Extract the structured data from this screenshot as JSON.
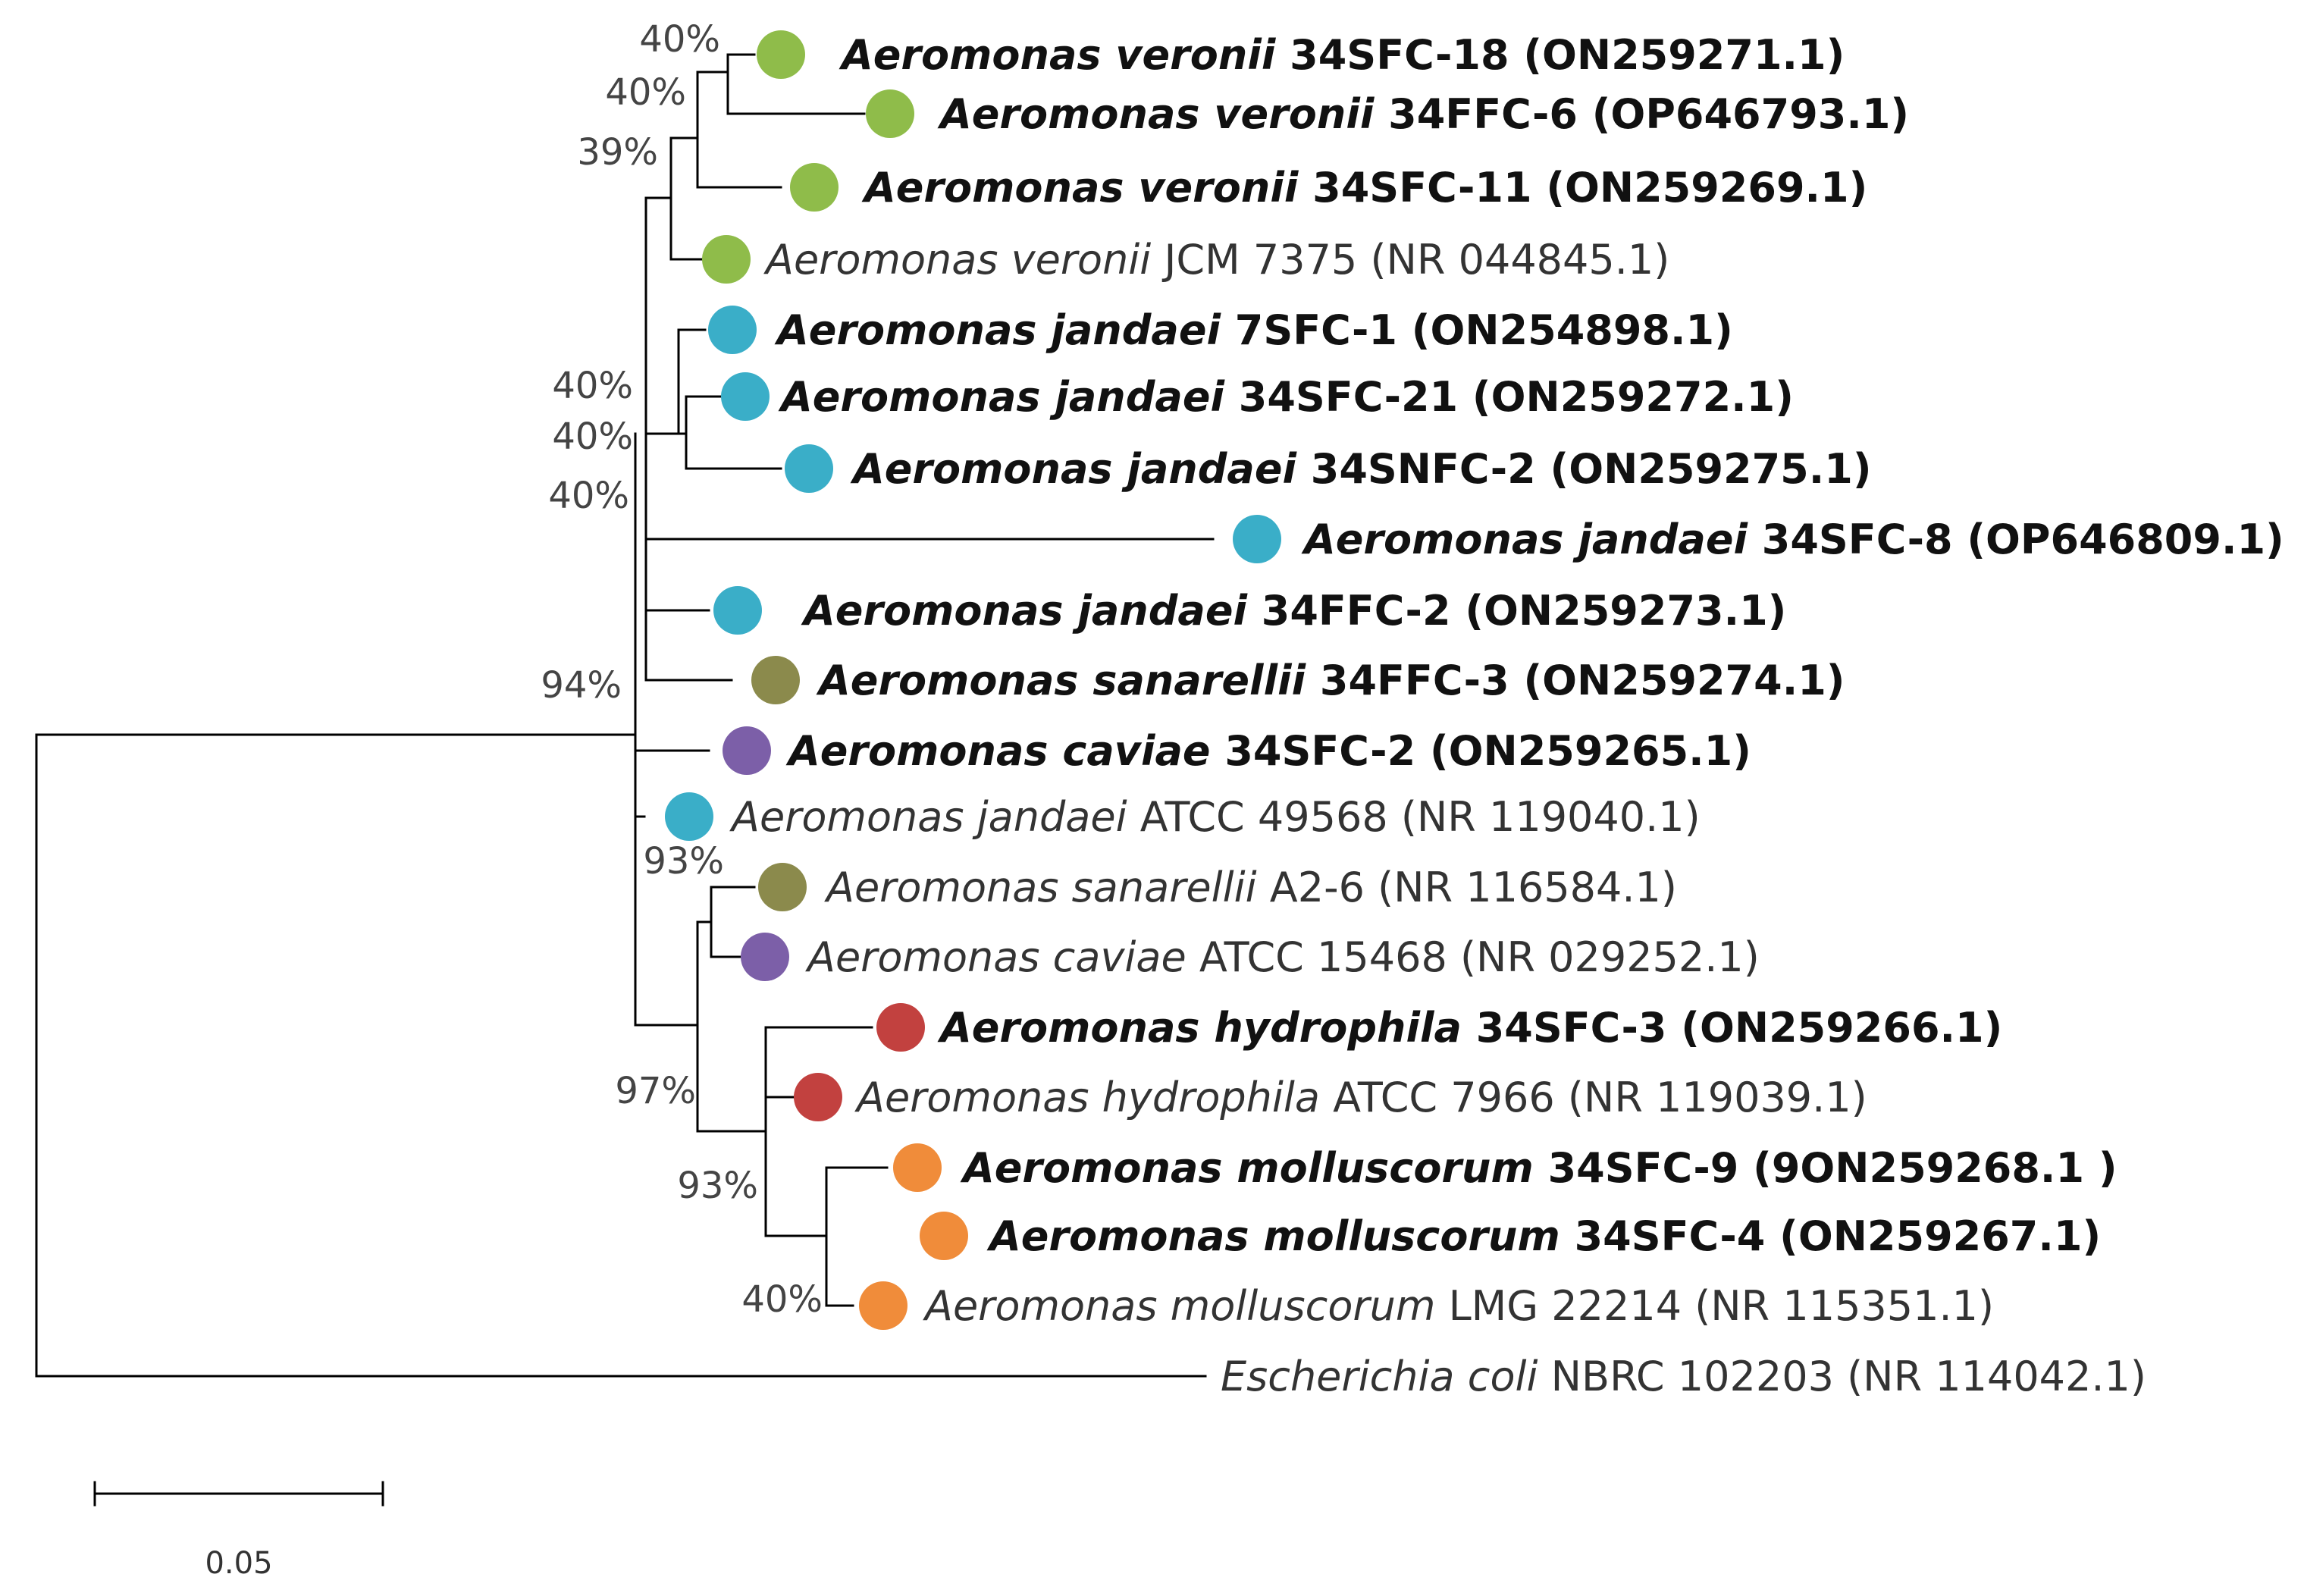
{
  "figure": {
    "scale_bar_label": "0.05"
  },
  "colors": {
    "veronii": "#8fbc4a",
    "jandaei": "#3aaec8",
    "sanarellii": "#8b8a4c",
    "caviae": "#7c5fa8",
    "hydrophila": "#c2413f",
    "molluscorum": "#f08c3a",
    "branch": "#000000"
  },
  "taxa": [
    {
      "genus": "Aeromonas veronii",
      "rest": " 34SFC-18 (ON259271.1)",
      "group": "veronii",
      "highlight": true
    },
    {
      "genus": "Aeromonas veronii",
      "rest": " 34FFC-6 (OP646793.1)",
      "group": "veronii",
      "highlight": true
    },
    {
      "genus": "Aeromonas veronii",
      "rest": " 34SFC-11 (ON259269.1)",
      "group": "veronii",
      "highlight": true
    },
    {
      "genus": "Aeromonas veronii",
      "rest": " JCM 7375 (NR 044845.1)",
      "group": "veronii",
      "highlight": false
    },
    {
      "genus": "Aeromonas jandaei",
      "rest": " 7SFC-1 (ON254898.1)",
      "group": "jandaei",
      "highlight": true
    },
    {
      "genus": "Aeromonas jandaei",
      "rest": " 34SFC-21 (ON259272.1)",
      "group": "jandaei",
      "highlight": true
    },
    {
      "genus": "Aeromonas jandaei",
      "rest": " 34SNFC-2 (ON259275.1)",
      "group": "jandaei",
      "highlight": true
    },
    {
      "genus": "Aeromonas jandaei",
      "rest": " 34SFC-8 (OP646809.1)",
      "group": "jandaei",
      "highlight": true
    },
    {
      "genus": "Aeromonas jandaei",
      "rest": " 34FFC-2 (ON259273.1)",
      "group": "jandaei",
      "highlight": true
    },
    {
      "genus": "Aeromonas sanarellii",
      "rest": " 34FFC-3 (ON259274.1)",
      "group": "sanarellii",
      "highlight": true
    },
    {
      "genus": "Aeromonas caviae",
      "rest": " 34SFC-2 (ON259265.1)",
      "group": "caviae",
      "highlight": true
    },
    {
      "genus": "Aeromonas jandaei",
      "rest": " ATCC 49568 (NR 119040.1)",
      "group": "jandaei",
      "highlight": false
    },
    {
      "genus": "Aeromonas sanarellii",
      "rest": " A2-6 (NR 116584.1)",
      "group": "sanarellii",
      "highlight": false
    },
    {
      "genus": "Aeromonas caviae",
      "rest": " ATCC 15468 (NR 029252.1)",
      "group": "caviae",
      "highlight": false
    },
    {
      "genus": "Aeromonas hydrophila",
      "rest": " 34SFC-3 (ON259266.1)",
      "group": "hydrophila",
      "highlight": true
    },
    {
      "genus": "Aeromonas hydrophila",
      "rest": " ATCC 7966 (NR 119039.1)",
      "group": "hydrophila",
      "highlight": false
    },
    {
      "genus": "Aeromonas molluscorum",
      "rest": " 34SFC-9 (9ON259268.1 )",
      "group": "molluscorum",
      "highlight": true
    },
    {
      "genus": "Aeromonas molluscorum",
      "rest": " 34SFC-4 (ON259267.1)",
      "group": "molluscorum",
      "highlight": true
    },
    {
      "genus": "Aeromonas molluscorum",
      "rest": " LMG 22214 (NR 115351.1)",
      "group": "molluscorum",
      "highlight": false
    },
    {
      "genus": "Escherichia coli",
      "rest": " NBRC 102203 (NR 114042.1)",
      "group": null,
      "highlight": false
    }
  ],
  "support_values": [
    {
      "id": "s1",
      "label": "40%"
    },
    {
      "id": "s2",
      "label": "40%"
    },
    {
      "id": "s3",
      "label": "39%"
    },
    {
      "id": "s4",
      "label": "40%"
    },
    {
      "id": "s5",
      "label": "40%"
    },
    {
      "id": "s6",
      "label": "40%"
    },
    {
      "id": "s7",
      "label": "94%"
    },
    {
      "id": "s8",
      "label": "93%"
    },
    {
      "id": "s9",
      "label": "97%"
    },
    {
      "id": "s10",
      "label": "93%"
    },
    {
      "id": "s11",
      "label": "40%"
    }
  ]
}
